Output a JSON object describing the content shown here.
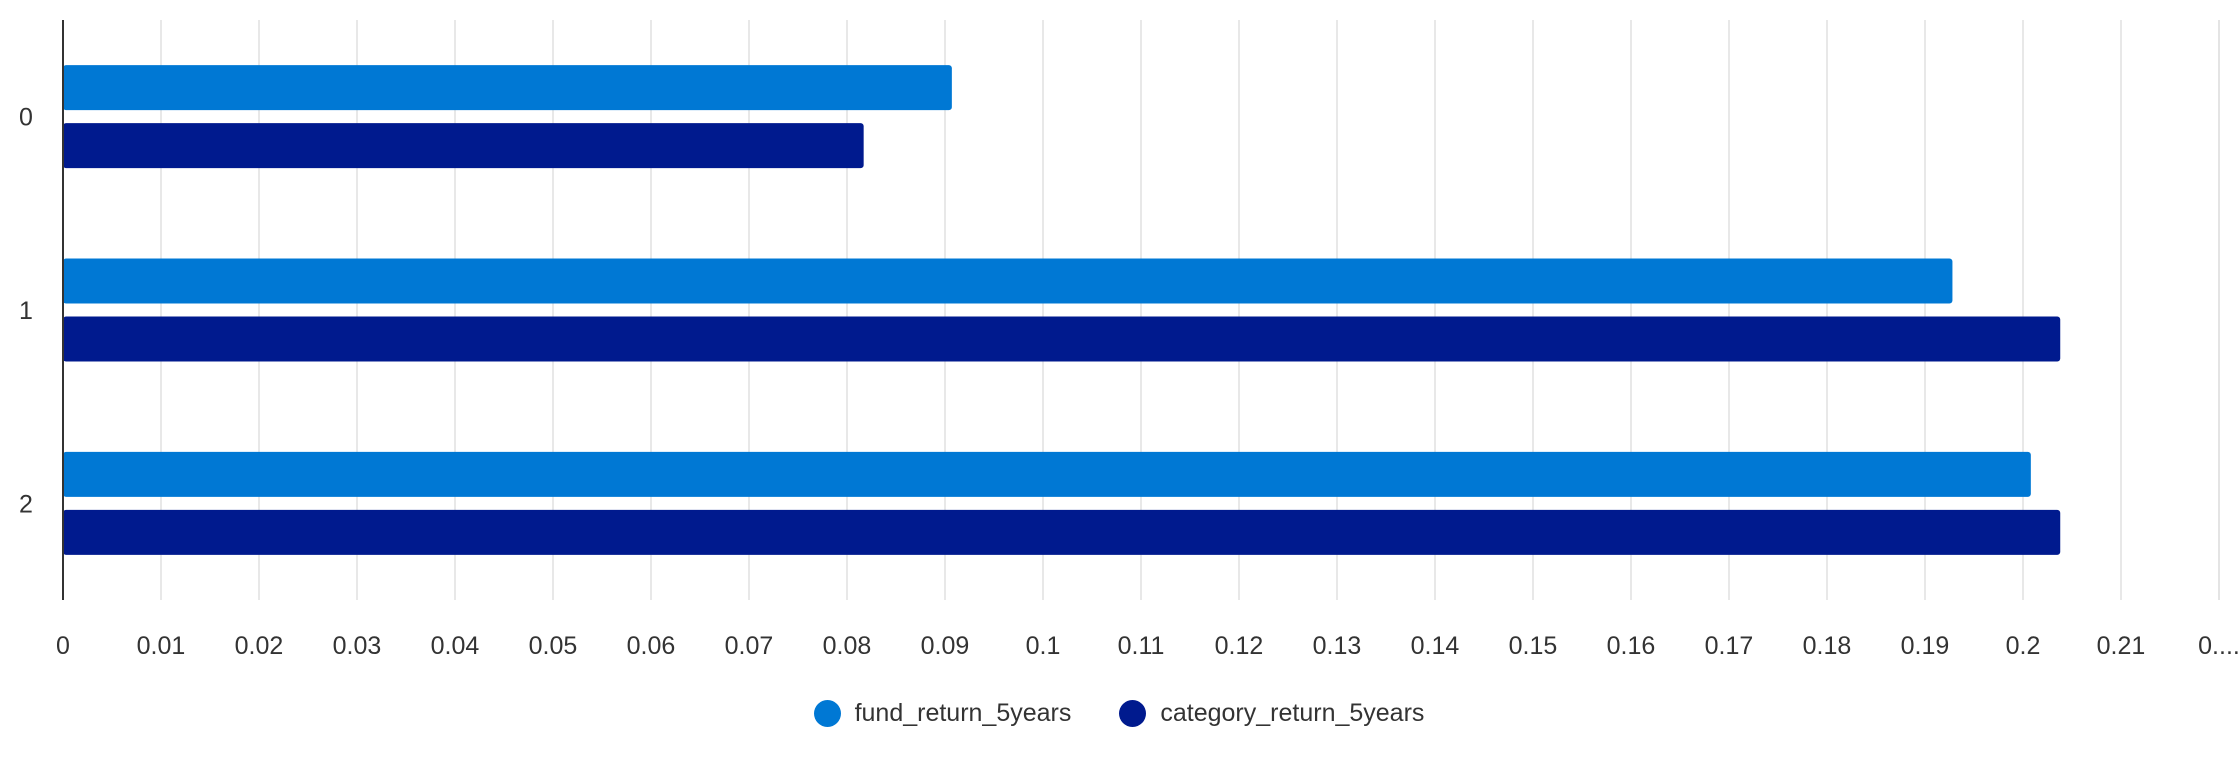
{
  "chart_data": {
    "type": "bar",
    "orientation": "horizontal",
    "categories": [
      "0",
      "1",
      "2"
    ],
    "series": [
      {
        "name": "fund_return_5years",
        "color": "#0078D4",
        "values": [
          0.0907,
          0.1928,
          0.2008
        ]
      },
      {
        "name": "category_return_5years",
        "color": "#001A8E",
        "values": [
          0.0817,
          0.2038,
          0.2038
        ]
      }
    ],
    "x_ticks": [
      "0",
      "0.01",
      "0.02",
      "0.03",
      "0.04",
      "0.05",
      "0.06",
      "0.07",
      "0.08",
      "0.09",
      "0.1",
      "0.11",
      "0.12",
      "0.13",
      "0.14",
      "0.15",
      "0.16",
      "0.17",
      "0.18",
      "0.19",
      "0.2",
      "0.21",
      "0...."
    ],
    "xlim": [
      0,
      0.22
    ],
    "grid": true,
    "legend_position": "bottom-center",
    "title": "",
    "xlabel": "",
    "ylabel": ""
  }
}
